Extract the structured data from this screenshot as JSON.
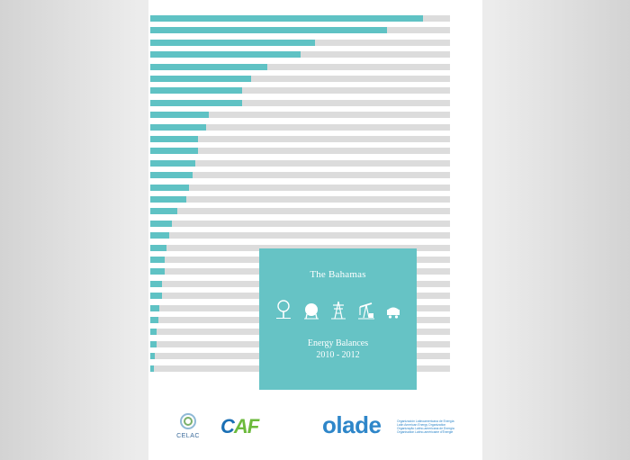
{
  "cover": {
    "country": "The Bahamas",
    "title": "Energy Balances",
    "period": "2010 - 2012"
  },
  "bar_fill_fractions": [
    0.91,
    0.79,
    0.55,
    0.5,
    0.39,
    0.335,
    0.305,
    0.305,
    0.195,
    0.185,
    0.16,
    0.16,
    0.15,
    0.14,
    0.13,
    0.12,
    0.09,
    0.073,
    0.063,
    0.055,
    0.048,
    0.048,
    0.04,
    0.04,
    0.031,
    0.027,
    0.021,
    0.021,
    0.015,
    0.012
  ],
  "colors": {
    "accent": "#66c3c5",
    "bar_fill": "#5fc2c4",
    "bar_track": "#dcdcdc",
    "caf_blue": "#1a6fb4",
    "caf_green": "#6cba3c",
    "olade_blue": "#2e86c9"
  },
  "icons": [
    "tree-icon",
    "gas-tank-icon",
    "power-tower-icon",
    "oil-pump-icon",
    "mine-cart-icon"
  ],
  "logos": {
    "celac": "CELAC",
    "caf_c": "C",
    "caf_af": "AF",
    "olade": "olade",
    "olade_lines": [
      "Organización Latinoamericana de Energía",
      "Latin American Energy Organization",
      "Organização Latino-americana de Energia",
      "Organisation Latino-américaine d'Énergie"
    ]
  }
}
